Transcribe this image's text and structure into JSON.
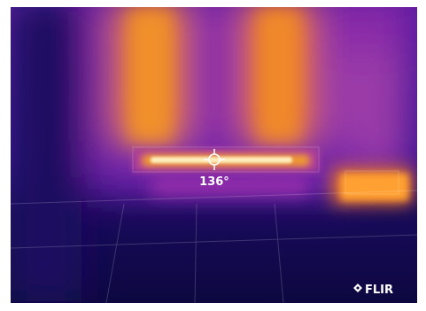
{
  "overlay": {
    "temperature": "136°",
    "brand": "FLIR"
  }
}
